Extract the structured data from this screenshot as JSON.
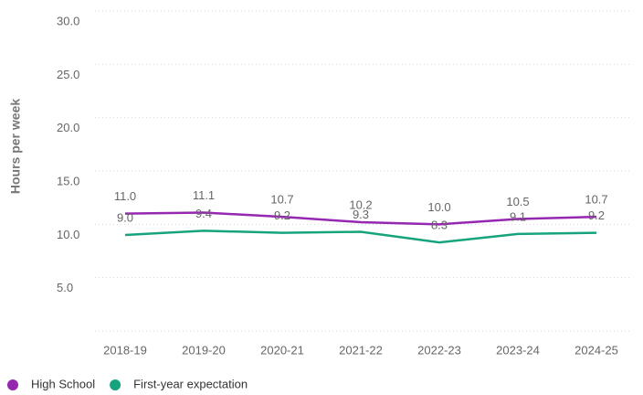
{
  "chart_data": {
    "type": "line",
    "ylabel": "Hours per week",
    "categories": [
      "2018-19",
      "2019-20",
      "2020-21",
      "2021-22",
      "2022-23",
      "2023-24",
      "2024-25"
    ],
    "series": [
      {
        "name": "High School",
        "color": "#9527b0",
        "values": [
          11.0,
          11.1,
          10.7,
          10.2,
          10.0,
          10.5,
          10.7
        ],
        "value_labels": [
          "11.0",
          "11.1",
          "10.7",
          "10.2",
          "10.0",
          "10.5",
          "10.7"
        ]
      },
      {
        "name": "First-year expectation",
        "color": "#17a37e",
        "values": [
          9.0,
          9.4,
          9.2,
          9.3,
          8.3,
          9.1,
          9.2
        ],
        "value_labels": [
          "9.0",
          "9.4",
          "9.2",
          "9.3",
          "8.3",
          "9.1",
          "9.2"
        ]
      }
    ],
    "ylim": [
      0,
      30
    ],
    "yticks": [
      {
        "value": 5,
        "label": "5.0"
      },
      {
        "value": 10,
        "label": "10.0"
      },
      {
        "value": 15,
        "label": "15.0"
      },
      {
        "value": 20,
        "label": "20.0"
      },
      {
        "value": 25,
        "label": "25.0"
      },
      {
        "value": 30,
        "label": "30.0"
      }
    ],
    "grid": true,
    "legend": "bottom-left"
  }
}
